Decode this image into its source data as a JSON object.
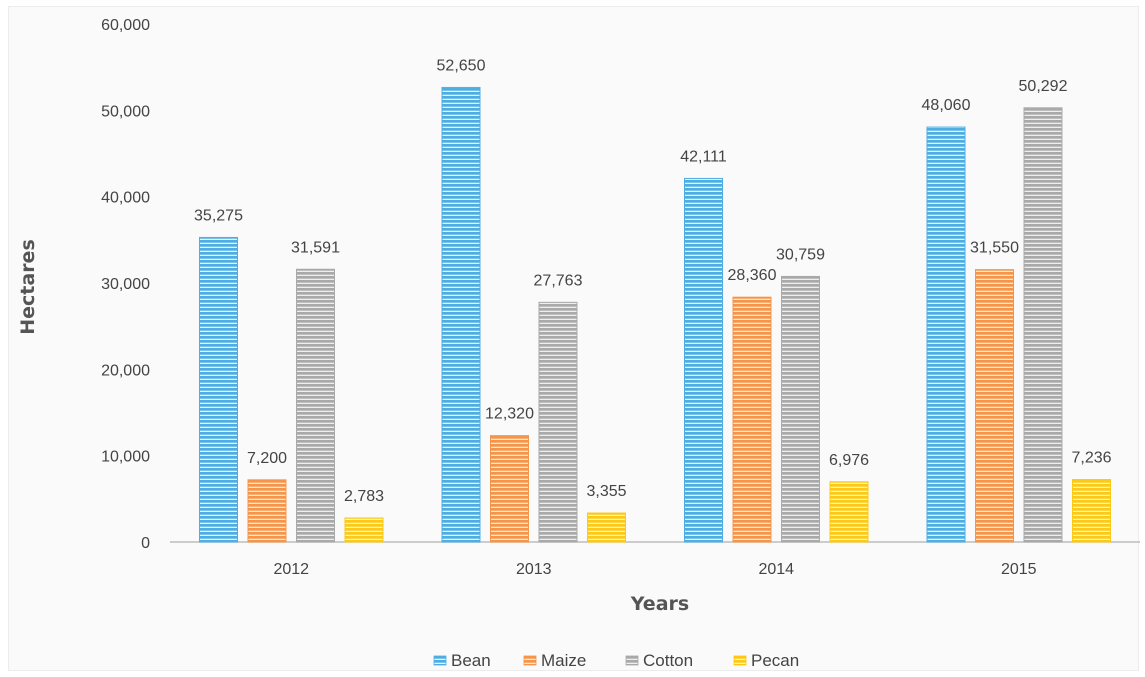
{
  "chart_data": {
    "type": "bar",
    "title": "",
    "xlabel": "Years",
    "ylabel": "Hectares",
    "categories": [
      "2012",
      "2013",
      "2014",
      "2015"
    ],
    "ylim": [
      0,
      60000
    ],
    "yticks": [
      0,
      10000,
      20000,
      30000,
      40000,
      50000,
      60000
    ],
    "ytick_labels": [
      "0",
      "10,000",
      "20,000",
      "30,000",
      "40,000",
      "50,000",
      "60,000"
    ],
    "grid": false,
    "legend_position": "bottom",
    "series": [
      {
        "name": "Bean",
        "color": "#4eaee3",
        "values": [
          35275,
          52650,
          42111,
          48060
        ],
        "labels": [
          "35,275",
          "52,650",
          "42,111",
          "48,060"
        ]
      },
      {
        "name": "Maize",
        "color": "#f5954a",
        "values": [
          7200,
          12320,
          28360,
          31550
        ],
        "labels": [
          "7,200",
          "12,320",
          "28,360",
          "31,550"
        ]
      },
      {
        "name": "Cotton",
        "color": "#a9a9a9",
        "values": [
          31591,
          27763,
          30759,
          50292
        ],
        "labels": [
          "31,591",
          "27,763",
          "30,759",
          "50,292"
        ]
      },
      {
        "name": "Pecan",
        "color": "#fcc914",
        "values": [
          2783,
          3355,
          6976,
          7236
        ],
        "labels": [
          "2,783",
          "3,355",
          "6,976",
          "7,236"
        ]
      }
    ]
  }
}
